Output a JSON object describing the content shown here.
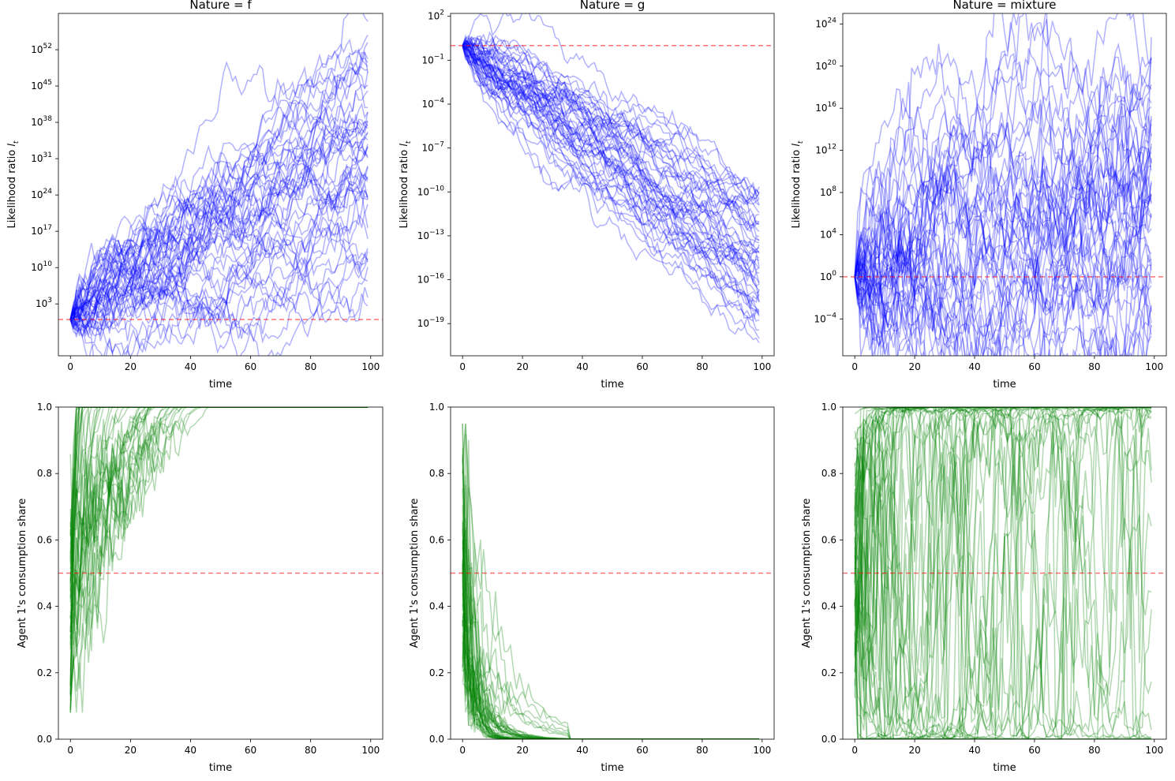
{
  "figure": {
    "background": "#ffffff"
  },
  "colors": {
    "likelihood": "#0000ff",
    "share": "#008000",
    "reference": "#ff0000"
  },
  "chart_data": [
    {
      "id": "lr_f",
      "type": "line",
      "title": "Nature = f",
      "xlabel": "time",
      "ylabel": "Likelihood ratio",
      "ylabel_sub": "t",
      "xlim": [
        -4,
        104
      ],
      "yscale": "log",
      "ylim_log10": [
        -7,
        59
      ],
      "xticks": [
        0,
        20,
        40,
        60,
        80,
        100
      ],
      "yticks": [
        {
          "base": "10",
          "exp": "3",
          "v": 3
        },
        {
          "base": "10",
          "exp": "10",
          "v": 10
        },
        {
          "base": "10",
          "exp": "17",
          "v": 17
        },
        {
          "base": "10",
          "exp": "24",
          "v": 24
        },
        {
          "base": "10",
          "exp": "31",
          "v": 31
        },
        {
          "base": "10",
          "exp": "38",
          "v": 38
        },
        {
          "base": "10",
          "exp": "45",
          "v": 45
        },
        {
          "base": "10",
          "exp": "52",
          "v": 52
        }
      ],
      "reference_log10": 0,
      "n_paths": 50,
      "paths_summary": {
        "start_log10": 0,
        "end_log10_min": 2,
        "end_log10_max": 58,
        "end_log10_median": 26,
        "time": [
          0,
          99
        ]
      }
    },
    {
      "id": "lr_g",
      "type": "line",
      "title": "Nature = g",
      "xlabel": "time",
      "ylabel": "Likelihood ratio",
      "ylabel_sub": "t",
      "xlim": [
        -4,
        104
      ],
      "yscale": "log",
      "ylim_log10": [
        -21.2,
        2.2
      ],
      "xticks": [
        0,
        20,
        40,
        60,
        80,
        100
      ],
      "yticks": [
        {
          "base": "10",
          "exp": "−19",
          "v": -19
        },
        {
          "base": "10",
          "exp": "−16",
          "v": -16
        },
        {
          "base": "10",
          "exp": "−13",
          "v": -13
        },
        {
          "base": "10",
          "exp": "−10",
          "v": -10
        },
        {
          "base": "10",
          "exp": "−7",
          "v": -7
        },
        {
          "base": "10",
          "exp": "−4",
          "v": -4
        },
        {
          "base": "10",
          "exp": "−1",
          "v": -1
        },
        {
          "base": "10",
          "exp": "2",
          "v": 2
        }
      ],
      "reference_log10": 0,
      "n_paths": 50,
      "paths_summary": {
        "start_log10": 0,
        "end_log10_min": -20.5,
        "end_log10_max": -9.5,
        "end_log10_median": -16,
        "time": [
          0,
          99
        ]
      }
    },
    {
      "id": "lr_mix",
      "type": "line",
      "title": "Nature = mixture",
      "xlabel": "time",
      "ylabel": "Likelihood ratio",
      "ylabel_sub": "t",
      "xlim": [
        -4,
        104
      ],
      "yscale": "log",
      "ylim_log10": [
        -7.5,
        25
      ],
      "xticks": [
        0,
        20,
        40,
        60,
        80,
        100
      ],
      "yticks": [
        {
          "base": "10",
          "exp": "−4",
          "v": -4
        },
        {
          "base": "10",
          "exp": "0",
          "v": 0
        },
        {
          "base": "10",
          "exp": "4",
          "v": 4
        },
        {
          "base": "10",
          "exp": "8",
          "v": 8
        },
        {
          "base": "10",
          "exp": "12",
          "v": 12
        },
        {
          "base": "10",
          "exp": "16",
          "v": 16
        },
        {
          "base": "10",
          "exp": "20",
          "v": 20
        },
        {
          "base": "10",
          "exp": "24",
          "v": 24
        }
      ],
      "reference_log10": 0,
      "n_paths": 50,
      "paths_summary": {
        "start_log10": 0,
        "end_log10_min": -6.2,
        "end_log10_max": 23,
        "end_log10_median": 8,
        "time": [
          0,
          99
        ]
      }
    },
    {
      "id": "share_f",
      "type": "line",
      "title": "",
      "xlabel": "time",
      "ylabel": "Agent 1's consumption share",
      "xlim": [
        -4,
        104
      ],
      "ylim": [
        0,
        1
      ],
      "xticks": [
        0,
        20,
        40,
        60,
        80,
        100
      ],
      "yticks": [
        {
          "label": "0.0",
          "v": 0
        },
        {
          "label": "0.2",
          "v": 0.2
        },
        {
          "label": "0.4",
          "v": 0.4
        },
        {
          "label": "0.6",
          "v": 0.6
        },
        {
          "label": "0.8",
          "v": 0.8
        },
        {
          "label": "1.0",
          "v": 1
        }
      ],
      "reference": 0.5,
      "n_paths": 50,
      "paths_summary": {
        "pattern": "converge to 1 by t≈45",
        "min_value": 0.08,
        "time": [
          0,
          99
        ]
      }
    },
    {
      "id": "share_g",
      "type": "line",
      "title": "",
      "xlabel": "time",
      "ylabel": "Agent 1's consumption share",
      "xlim": [
        -4,
        104
      ],
      "ylim": [
        0,
        1
      ],
      "xticks": [
        0,
        20,
        40,
        60,
        80,
        100
      ],
      "yticks": [
        {
          "label": "0.0",
          "v": 0
        },
        {
          "label": "0.2",
          "v": 0.2
        },
        {
          "label": "0.4",
          "v": 0.4
        },
        {
          "label": "0.6",
          "v": 0.6
        },
        {
          "label": "0.8",
          "v": 0.8
        },
        {
          "label": "1.0",
          "v": 1
        }
      ],
      "reference": 0.5,
      "n_paths": 50,
      "paths_summary": {
        "pattern": "decay to 0 by t≈35",
        "max_value": 0.92,
        "time": [
          0,
          99
        ]
      }
    },
    {
      "id": "share_mix",
      "type": "line",
      "title": "",
      "xlabel": "time",
      "ylabel": "Agent 1's consumption share",
      "xlim": [
        -4,
        104
      ],
      "ylim": [
        0,
        1
      ],
      "xticks": [
        0,
        20,
        40,
        60,
        80,
        100
      ],
      "yticks": [
        {
          "label": "0.0",
          "v": 0
        },
        {
          "label": "0.2",
          "v": 0.2
        },
        {
          "label": "0.4",
          "v": 0.4
        },
        {
          "label": "0.6",
          "v": 0.6
        },
        {
          "label": "0.8",
          "v": 0.8
        },
        {
          "label": "1.0",
          "v": 1
        }
      ],
      "reference": 0.5,
      "n_paths": 50,
      "paths_summary": {
        "pattern": "oscillate between 0 and 1",
        "time": [
          0,
          99
        ]
      }
    }
  ]
}
